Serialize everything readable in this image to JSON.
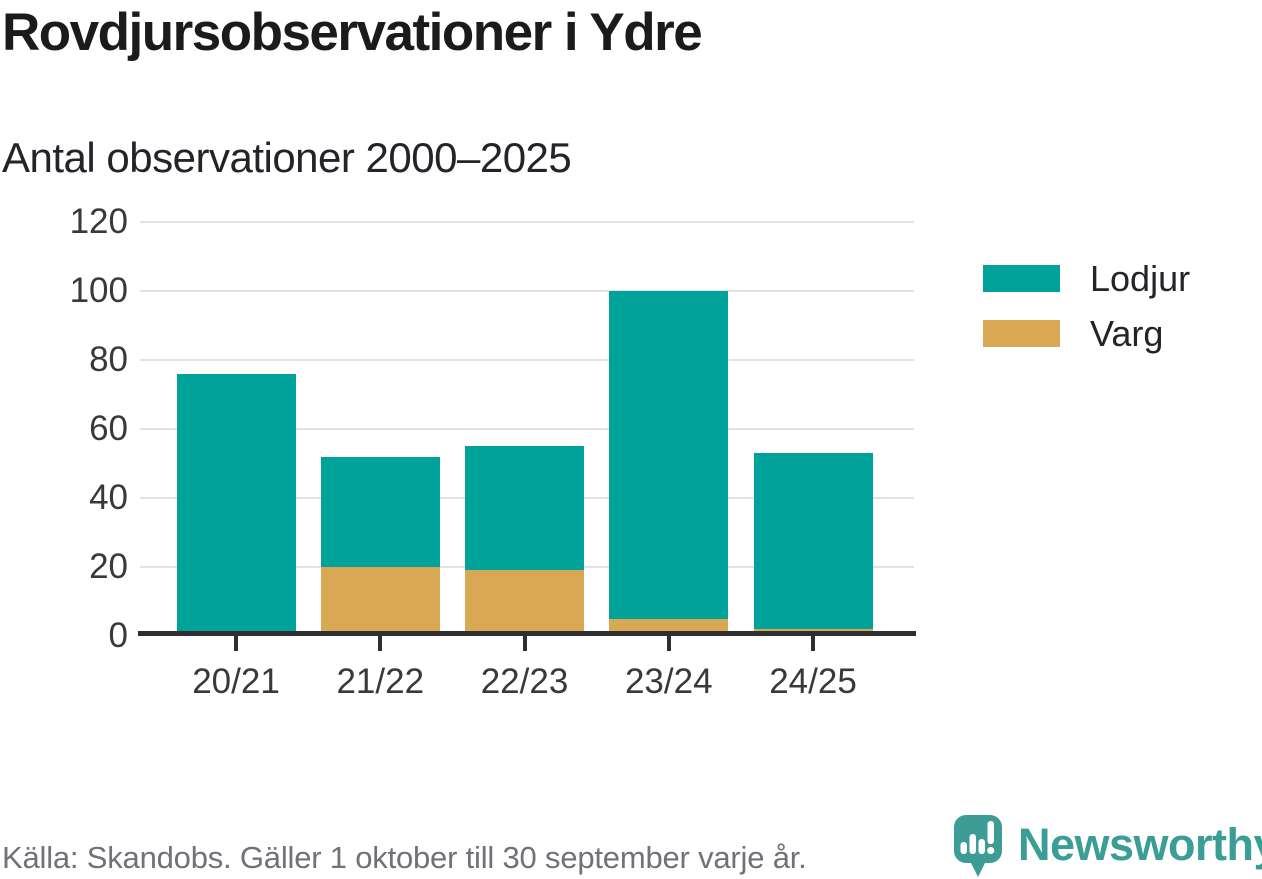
{
  "title": "Rovdjursobservationer i Ydre",
  "subtitle": "Antal observationer 2000–2025",
  "chart_data": {
    "type": "bar",
    "stacked": true,
    "title": "Rovdjursobservationer i Ydre",
    "subtitle": "Antal observationer 2000–2025",
    "categories": [
      "20/21",
      "21/22",
      "22/23",
      "23/24",
      "24/25"
    ],
    "series": [
      {
        "name": "Lodjur",
        "color": "#00a29a",
        "values": [
          75,
          32,
          36,
          95,
          51
        ]
      },
      {
        "name": "Varg",
        "color": "#d9a854",
        "values": [
          1,
          20,
          19,
          5,
          2
        ]
      }
    ],
    "stack_order_bottom_to_top": [
      "Varg",
      "Lodjur"
    ],
    "totals": [
      76,
      52,
      55,
      100,
      53
    ],
    "ylim": [
      0,
      120
    ],
    "yticks": [
      0,
      20,
      40,
      60,
      80,
      100,
      120
    ],
    "xlabel": "",
    "ylabel": "",
    "grid": true,
    "legend_position": "right"
  },
  "colors": {
    "lodjur": "#00a29a",
    "varg": "#d9a854",
    "gridline": "#e2e2e4",
    "axis": "#2f2f31",
    "logo_teal": "#3d9d96"
  },
  "footer": {
    "source": "Källa: Skandobs. Gäller 1 oktober till 30 september varje år."
  },
  "logo": {
    "brand": "Newsworthy"
  }
}
